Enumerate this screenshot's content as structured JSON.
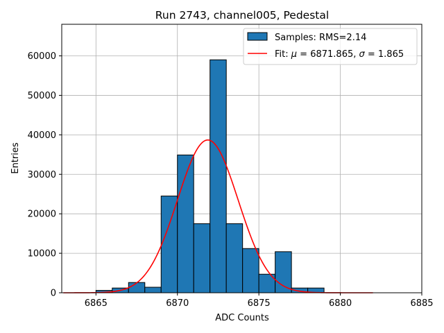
{
  "chart_data": {
    "type": "bar",
    "title": "Run 2743, channel005, Pedestal",
    "xlabel": "ADC Counts",
    "ylabel": "Entries",
    "xlim": [
      6862.9,
      6885
    ],
    "ylim": [
      0,
      68000
    ],
    "xticks": [
      6865,
      6870,
      6875,
      6880,
      6885
    ],
    "yticks": [
      0,
      10000,
      20000,
      30000,
      40000,
      50000,
      60000
    ],
    "grid": true,
    "legend_position": "top-right",
    "histogram": {
      "name": "Samples: RMS=2.14",
      "color": "#1f77b4",
      "bin_edges": [
        6865,
        6866,
        6867,
        6868,
        6869,
        6870,
        6871,
        6872,
        6873,
        6874,
        6875,
        6876,
        6877,
        6878,
        6879
      ],
      "counts": [
        600,
        1200,
        2600,
        1400,
        24500,
        34900,
        17500,
        59000,
        17500,
        11200,
        4700,
        10400,
        1200,
        1200
      ]
    },
    "fit": {
      "name_prefix": "Fit: ",
      "mu_symbol": "μ",
      "mu_text": " = 6871.865, ",
      "sigma_symbol": "σ",
      "sigma_text": " = 1.865",
      "color": "#ff0000",
      "mu": 6871.865,
      "sigma": 1.865,
      "amplitude": 38700,
      "x_range": [
        6863,
        6882
      ]
    }
  }
}
